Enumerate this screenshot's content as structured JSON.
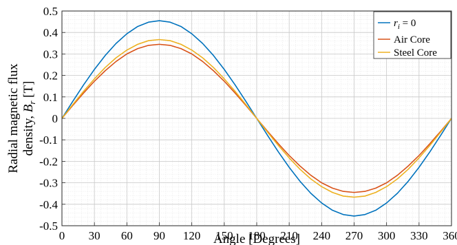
{
  "chart_data": {
    "type": "line",
    "xlabel": "Angle [Degrees]",
    "ylabel_line1": "Radial magnetic flux",
    "ylabel_line2_prefix": "density, ",
    "ylabel_symbol": "B",
    "ylabel_subscript": "r",
    "ylabel_unit": " [T]",
    "xlim": [
      0,
      360
    ],
    "ylim": [
      -0.5,
      0.5
    ],
    "xticks": [
      0,
      30,
      60,
      90,
      120,
      150,
      180,
      210,
      240,
      270,
      300,
      330,
      360
    ],
    "yticks": [
      -0.5,
      -0.4,
      -0.3,
      -0.2,
      -0.1,
      0,
      0.1,
      0.2,
      0.3,
      0.4,
      0.5
    ],
    "xtick_labels": [
      "0",
      "30",
      "60",
      "90",
      "120",
      "150",
      "180",
      "210",
      "240",
      "270",
      "300",
      "330",
      "360"
    ],
    "ytick_labels": [
      "-0.5",
      "-0.4",
      "-0.3",
      "-0.2",
      "-0.1",
      "0",
      "0.1",
      "0.2",
      "0.3",
      "0.4",
      "0.5"
    ],
    "grid": "major and minor",
    "legend_position": "top-right",
    "x": [
      0,
      10,
      20,
      30,
      40,
      50,
      60,
      70,
      80,
      90,
      100,
      110,
      120,
      130,
      140,
      150,
      160,
      170,
      180,
      190,
      200,
      210,
      220,
      230,
      240,
      250,
      260,
      270,
      280,
      290,
      300,
      310,
      320,
      330,
      340,
      350,
      360
    ],
    "series": [
      {
        "legend_symbol": "r",
        "legend_subscript": "i",
        "legend_suffix": " = 0",
        "color": "#0072bd",
        "values": [
          0,
          0.079,
          0.156,
          0.228,
          0.293,
          0.349,
          0.394,
          0.428,
          0.448,
          0.455,
          0.448,
          0.428,
          0.394,
          0.349,
          0.293,
          0.228,
          0.156,
          0.079,
          0,
          -0.079,
          -0.156,
          -0.228,
          -0.293,
          -0.349,
          -0.394,
          -0.428,
          -0.448,
          -0.455,
          -0.448,
          -0.428,
          -0.394,
          -0.349,
          -0.293,
          -0.228,
          -0.156,
          -0.079,
          0
        ]
      },
      {
        "name": "Air Core",
        "color": "#d95319",
        "values": [
          0,
          0.06,
          0.118,
          0.173,
          0.222,
          0.265,
          0.3,
          0.325,
          0.34,
          0.345,
          0.34,
          0.325,
          0.3,
          0.265,
          0.222,
          0.173,
          0.118,
          0.06,
          0,
          -0.06,
          -0.118,
          -0.173,
          -0.222,
          -0.265,
          -0.3,
          -0.325,
          -0.34,
          -0.345,
          -0.34,
          -0.325,
          -0.3,
          -0.265,
          -0.222,
          -0.173,
          -0.118,
          -0.06,
          0
        ]
      },
      {
        "name": "Steel Core",
        "color": "#edb120",
        "values": [
          0,
          0.064,
          0.126,
          0.184,
          0.237,
          0.282,
          0.318,
          0.345,
          0.362,
          0.367,
          0.362,
          0.345,
          0.318,
          0.282,
          0.237,
          0.184,
          0.126,
          0.064,
          0,
          -0.064,
          -0.126,
          -0.184,
          -0.237,
          -0.282,
          -0.318,
          -0.345,
          -0.362,
          -0.367,
          -0.362,
          -0.345,
          -0.318,
          -0.282,
          -0.237,
          -0.184,
          -0.126,
          -0.064,
          0
        ]
      }
    ]
  }
}
